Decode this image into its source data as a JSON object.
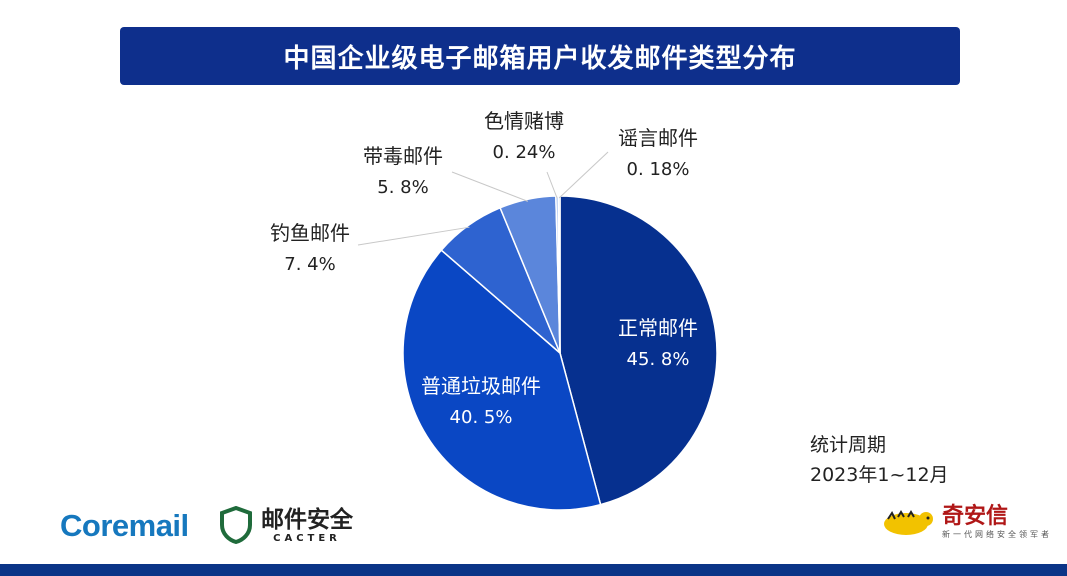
{
  "title": "中国企业级电子邮箱用户收发邮件类型分布",
  "chart_data": {
    "type": "pie",
    "title": "中国企业级电子邮箱用户收发邮件类型分布",
    "start": "top-clockwise",
    "slices": [
      {
        "label": "正常邮件",
        "value": 45.8,
        "value_label": "45. 8%",
        "color": "#06308f",
        "label_placement": "inside"
      },
      {
        "label": "普通垃圾邮件",
        "value": 40.5,
        "value_label": "40. 5%",
        "color": "#0a47c4",
        "label_placement": "inside"
      },
      {
        "label": "钓鱼邮件",
        "value": 7.4,
        "value_label": "7. 4%",
        "color": "#2e63d0",
        "label_placement": "outside"
      },
      {
        "label": "带毒邮件",
        "value": 5.8,
        "value_label": "5. 8%",
        "color": "#5b86db",
        "label_placement": "outside"
      },
      {
        "label": "色情赌博",
        "value": 0.24,
        "value_label": "0. 24%",
        "color": "#8fb0ea",
        "label_placement": "outside"
      },
      {
        "label": "谣言邮件",
        "value": 0.18,
        "value_label": "0. 18%",
        "color": "#bcd0f4",
        "label_placement": "outside"
      }
    ]
  },
  "stats": {
    "label": "统计周期",
    "period": "2023年1~12月"
  },
  "logos": {
    "coremail": "Coremail",
    "cacter_cn": "邮件安全",
    "cacter_en": "CACTER",
    "qax_name": "奇安信",
    "qax_slogan": "新一代网络安全领军者"
  }
}
